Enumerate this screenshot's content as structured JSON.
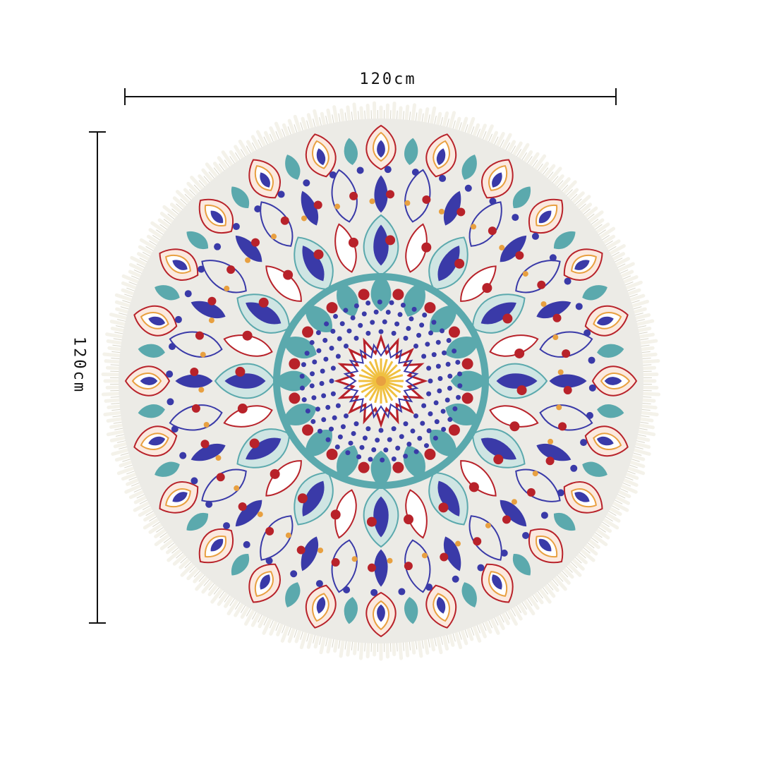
{
  "dimensions": {
    "width_label": "120cm",
    "height_label": "120cm"
  },
  "product": {
    "shape": "round",
    "fringe": true,
    "colors": {
      "base": "#ecebe6",
      "fringe": "#f4f2ea",
      "blue": "#3a3aa8",
      "teal": "#5ba9ad",
      "red": "#b8222a",
      "orange": "#e8a040",
      "gold": "#f0c040"
    }
  }
}
